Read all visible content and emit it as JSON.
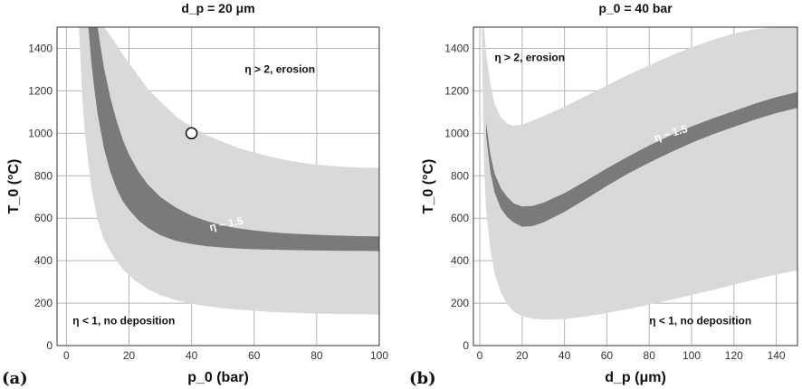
{
  "colors": {
    "outer_band": "#d9d9d9",
    "inner_band": "#7a7a7a",
    "grid": "#b5b5b5",
    "frame": "#333333"
  },
  "chart_data": [
    {
      "type": "area",
      "panel_label": "(a)",
      "title": "d_p = 20 μm",
      "xlabel": "p_0 (bar)",
      "ylabel": "T_0 (°C)",
      "xlim": [
        -3,
        100
      ],
      "ylim": [
        0,
        1500
      ],
      "xticks": [
        0,
        20,
        40,
        60,
        80,
        100
      ],
      "yticks": [
        0,
        200,
        400,
        600,
        800,
        1000,
        1200,
        1400
      ],
      "grid": true,
      "series": [
        {
          "name": "η > 2, erosion",
          "role": "outer_upper",
          "x": [
            6,
            8,
            10,
            12,
            15,
            18,
            22,
            26,
            30,
            35,
            40,
            45,
            50,
            55,
            60,
            65,
            70,
            75,
            80,
            85,
            90,
            95,
            100
          ],
          "values": [
            1500,
            1500,
            1500,
            1500,
            1440,
            1370,
            1290,
            1210,
            1150,
            1080,
            1030,
            990,
            960,
            930,
            910,
            890,
            875,
            862,
            852,
            846,
            841,
            838,
            836
          ]
        },
        {
          "name": "η < 1, no deposition",
          "role": "outer_lower",
          "x": [
            4,
            5,
            6,
            8,
            10,
            12,
            15,
            18,
            22,
            26,
            30,
            35,
            40,
            45,
            50,
            55,
            60,
            65,
            70,
            75,
            80,
            85,
            90,
            95,
            100
          ],
          "values": [
            1500,
            1180,
            990,
            740,
            590,
            500,
            420,
            360,
            305,
            265,
            238,
            214,
            197,
            185,
            176,
            169,
            164,
            159,
            156,
            153,
            151,
            149,
            148,
            147,
            146
          ]
        },
        {
          "name": "η ~ 1.5",
          "role": "inner_upper",
          "x": [
            10,
            11,
            12,
            14,
            16,
            18,
            20,
            23,
            26,
            30,
            35,
            40,
            45,
            50,
            55,
            60,
            65,
            70,
            75,
            80,
            85,
            90,
            95,
            100
          ],
          "values": [
            1500,
            1400,
            1310,
            1170,
            1060,
            970,
            900,
            820,
            760,
            700,
            650,
            612,
            586,
            566,
            552,
            542,
            535,
            529,
            525,
            522,
            519,
            517,
            515,
            514
          ]
        },
        {
          "name": "η ~ 1.5",
          "role": "inner_lower",
          "x": [
            7,
            8,
            9,
            10,
            12,
            14,
            16,
            18,
            20,
            23,
            26,
            30,
            35,
            40,
            45,
            50,
            55,
            60,
            65,
            70,
            75,
            80,
            85,
            90,
            95,
            100
          ],
          "values": [
            1500,
            1330,
            1200,
            1090,
            930,
            820,
            740,
            680,
            640,
            590,
            555,
            520,
            493,
            478,
            468,
            462,
            457,
            454,
            452,
            450,
            449,
            448,
            447,
            446,
            446,
            445
          ]
        }
      ],
      "marker": {
        "x": 40,
        "y": 1000
      },
      "annotations": [
        {
          "text": "η > 2, erosion",
          "x": 57,
          "y": 1285
        },
        {
          "text": "η < 1, no deposition",
          "x": 2,
          "y": 100
        },
        {
          "text": "η ~ 1.5",
          "x": 46,
          "y": 540,
          "rotate": -12,
          "inside_band": true
        }
      ]
    },
    {
      "type": "area",
      "panel_label": "(b)",
      "title": "p_0 = 40 bar",
      "xlabel": "d_p (μm)",
      "ylabel": "T_0 (°C)",
      "xlim": [
        -3,
        150
      ],
      "ylim": [
        0,
        1500
      ],
      "xticks": [
        0,
        20,
        40,
        60,
        80,
        100,
        120,
        140
      ],
      "yticks": [
        0,
        200,
        400,
        600,
        800,
        1000,
        1200,
        1400
      ],
      "grid": true,
      "series": [
        {
          "name": "η > 2, erosion",
          "role": "outer_upper",
          "x": [
            1,
            2,
            3,
            5,
            7,
            10,
            13,
            16,
            20,
            25,
            30,
            40,
            50,
            60,
            70,
            80,
            90,
            100,
            110,
            120,
            130,
            140,
            150
          ],
          "values": [
            1500,
            1500,
            1380,
            1230,
            1140,
            1075,
            1045,
            1035,
            1040,
            1060,
            1080,
            1125,
            1175,
            1225,
            1275,
            1320,
            1365,
            1405,
            1440,
            1470,
            1490,
            1500,
            1500
          ]
        },
        {
          "name": "η < 1, no deposition",
          "role": "outer_lower",
          "x": [
            1,
            2,
            3,
            5,
            7,
            10,
            13,
            16,
            20,
            25,
            30,
            40,
            50,
            60,
            70,
            80,
            90,
            100,
            110,
            120,
            130,
            140,
            150
          ],
          "values": [
            1420,
            850,
            640,
            450,
            340,
            250,
            195,
            160,
            138,
            126,
            122,
            125,
            137,
            153,
            172,
            193,
            215,
            238,
            262,
            287,
            312,
            335,
            355
          ]
        },
        {
          "name": "η ~ 1.5",
          "role": "inner_upper",
          "x": [
            3,
            5,
            7,
            10,
            13,
            16,
            20,
            25,
            30,
            40,
            50,
            60,
            70,
            80,
            90,
            100,
            110,
            120,
            130,
            140,
            150
          ],
          "values": [
            1050,
            900,
            810,
            740,
            700,
            670,
            655,
            658,
            673,
            718,
            775,
            835,
            890,
            943,
            990,
            1032,
            1070,
            1105,
            1140,
            1170,
            1195
          ]
        },
        {
          "name": "η ~ 1.5",
          "role": "inner_lower",
          "x": [
            3,
            5,
            7,
            10,
            13,
            16,
            20,
            25,
            30,
            40,
            50,
            60,
            70,
            80,
            90,
            100,
            110,
            120,
            130,
            140,
            150
          ],
          "values": [
            990,
            820,
            720,
            645,
            605,
            580,
            560,
            563,
            580,
            630,
            690,
            752,
            810,
            862,
            910,
            955,
            995,
            1030,
            1065,
            1095,
            1120
          ]
        }
      ],
      "annotations": [
        {
          "text": "η > 2, erosion",
          "x": 7,
          "y": 1340
        },
        {
          "text": "η < 1, no deposition",
          "x": 80,
          "y": 100
        },
        {
          "text": "η ~ 1.5",
          "x": 83,
          "y": 960,
          "rotate": -17,
          "inside_band": true
        }
      ]
    }
  ]
}
